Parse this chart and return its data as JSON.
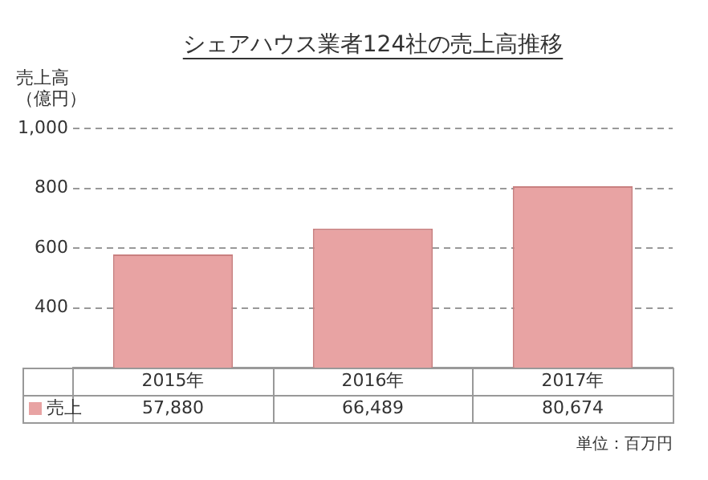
{
  "chart_data": {
    "type": "bar",
    "title": "シェアハウス業者124社の売上高推移",
    "ylabel": "売上高（億円）",
    "categories": [
      "2015年",
      "2016年",
      "2017年"
    ],
    "series": [
      {
        "name": "売上",
        "color": "#e8a3a3",
        "values": [
          578.8,
          664.89,
          806.74
        ]
      }
    ],
    "ylim": [
      200,
      1000
    ],
    "yticks": [
      400,
      600,
      800,
      {
        "value": 1000,
        "label": "1,000"
      }
    ],
    "grid": "y",
    "legend": "bottom",
    "annotations": [
      "57,880",
      "66,489",
      "80,674",
      "単位：百万円"
    ]
  }
}
